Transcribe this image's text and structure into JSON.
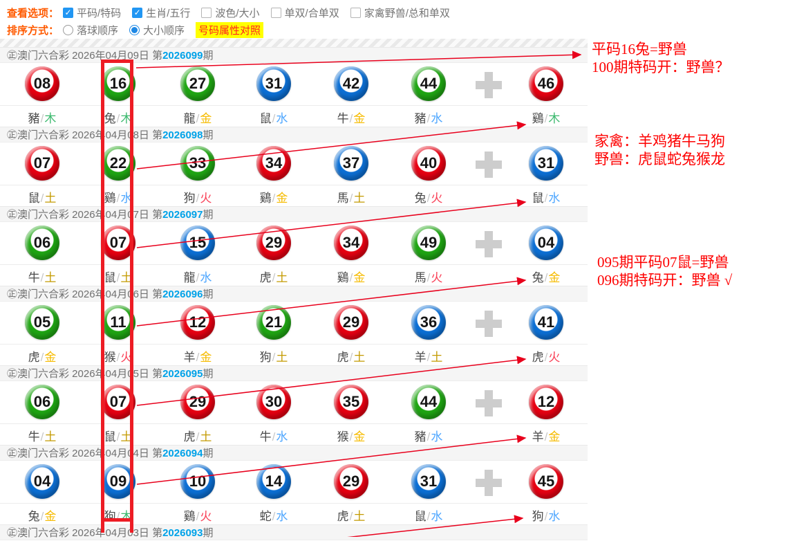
{
  "options_bar": {
    "view_label": "查看选项：",
    "checkboxes": [
      {
        "label": "平码/特码",
        "checked": true
      },
      {
        "label": "生肖/五行",
        "checked": true
      },
      {
        "label": "波色/大小",
        "checked": false
      },
      {
        "label": "单双/合单双",
        "checked": false
      },
      {
        "label": "家禽野兽/总和单双",
        "checked": false
      }
    ],
    "sort_label": "排序方式：",
    "radios": [
      {
        "label": "落球顺序",
        "selected": false
      },
      {
        "label": "大小顺序",
        "selected": true
      }
    ],
    "compare_button": "号码属性对照"
  },
  "draw_title": {
    "prefix": "㊣澳门六合彩",
    "period_prefix": "第",
    "period_suffix": "期"
  },
  "draws": [
    {
      "date": "2026年04月09日",
      "period": "2026099",
      "balls": [
        {
          "num": "08",
          "color": "red",
          "zodiac": "豬",
          "element": "木"
        },
        {
          "num": "16",
          "color": "green",
          "zodiac": "兔",
          "element": "木"
        },
        {
          "num": "27",
          "color": "green",
          "zodiac": "龍",
          "element": "金"
        },
        {
          "num": "31",
          "color": "blue",
          "zodiac": "鼠",
          "element": "水"
        },
        {
          "num": "42",
          "color": "blue",
          "zodiac": "牛",
          "element": "金"
        },
        {
          "num": "44",
          "color": "green",
          "zodiac": "豬",
          "element": "水"
        },
        {
          "num": "46",
          "color": "red",
          "zodiac": "鷄",
          "element": "木",
          "special": true
        }
      ]
    },
    {
      "date": "2026年04月08日",
      "period": "2026098",
      "balls": [
        {
          "num": "07",
          "color": "red",
          "zodiac": "鼠",
          "element": "土"
        },
        {
          "num": "22",
          "color": "green",
          "zodiac": "鷄",
          "element": "水"
        },
        {
          "num": "33",
          "color": "green",
          "zodiac": "狗",
          "element": "火"
        },
        {
          "num": "34",
          "color": "red",
          "zodiac": "鷄",
          "element": "金"
        },
        {
          "num": "37",
          "color": "blue",
          "zodiac": "馬",
          "element": "土"
        },
        {
          "num": "40",
          "color": "red",
          "zodiac": "兔",
          "element": "火"
        },
        {
          "num": "31",
          "color": "blue",
          "zodiac": "鼠",
          "element": "水",
          "special": true
        }
      ]
    },
    {
      "date": "2026年04月07日",
      "period": "2026097",
      "balls": [
        {
          "num": "06",
          "color": "green",
          "zodiac": "牛",
          "element": "土"
        },
        {
          "num": "07",
          "color": "red",
          "zodiac": "鼠",
          "element": "土"
        },
        {
          "num": "15",
          "color": "blue",
          "zodiac": "龍",
          "element": "水"
        },
        {
          "num": "29",
          "color": "red",
          "zodiac": "虎",
          "element": "土"
        },
        {
          "num": "34",
          "color": "red",
          "zodiac": "鷄",
          "element": "金"
        },
        {
          "num": "49",
          "color": "green",
          "zodiac": "馬",
          "element": "火"
        },
        {
          "num": "04",
          "color": "blue",
          "zodiac": "兔",
          "element": "金",
          "special": true
        }
      ]
    },
    {
      "date": "2026年04月06日",
      "period": "2026096",
      "balls": [
        {
          "num": "05",
          "color": "green",
          "zodiac": "虎",
          "element": "金"
        },
        {
          "num": "11",
          "color": "green",
          "zodiac": "猴",
          "element": "火"
        },
        {
          "num": "12",
          "color": "red",
          "zodiac": "羊",
          "element": "金"
        },
        {
          "num": "21",
          "color": "green",
          "zodiac": "狗",
          "element": "土"
        },
        {
          "num": "29",
          "color": "red",
          "zodiac": "虎",
          "element": "土"
        },
        {
          "num": "36",
          "color": "blue",
          "zodiac": "羊",
          "element": "土"
        },
        {
          "num": "41",
          "color": "blue",
          "zodiac": "虎",
          "element": "火",
          "special": true
        }
      ]
    },
    {
      "date": "2026年04月05日",
      "period": "2026095",
      "balls": [
        {
          "num": "06",
          "color": "green",
          "zodiac": "牛",
          "element": "土"
        },
        {
          "num": "07",
          "color": "red",
          "zodiac": "鼠",
          "element": "土"
        },
        {
          "num": "29",
          "color": "red",
          "zodiac": "虎",
          "element": "土"
        },
        {
          "num": "30",
          "color": "red",
          "zodiac": "牛",
          "element": "水"
        },
        {
          "num": "35",
          "color": "red",
          "zodiac": "猴",
          "element": "金"
        },
        {
          "num": "44",
          "color": "green",
          "zodiac": "豬",
          "element": "水"
        },
        {
          "num": "12",
          "color": "red",
          "zodiac": "羊",
          "element": "金",
          "special": true
        }
      ]
    },
    {
      "date": "2026年04月04日",
      "period": "2026094",
      "balls": [
        {
          "num": "04",
          "color": "blue",
          "zodiac": "兔",
          "element": "金"
        },
        {
          "num": "09",
          "color": "blue",
          "zodiac": "狗",
          "element": "木"
        },
        {
          "num": "10",
          "color": "blue",
          "zodiac": "鷄",
          "element": "火"
        },
        {
          "num": "14",
          "color": "blue",
          "zodiac": "蛇",
          "element": "水"
        },
        {
          "num": "29",
          "color": "red",
          "zodiac": "虎",
          "element": "土"
        },
        {
          "num": "31",
          "color": "blue",
          "zodiac": "鼠",
          "element": "水"
        },
        {
          "num": "45",
          "color": "red",
          "zodiac": "狗",
          "element": "水",
          "special": true
        }
      ]
    }
  ],
  "partial_draw": {
    "date": "2026年04月03日",
    "period": "2026093"
  },
  "annotations": [
    {
      "line1": "平码16兔=野兽",
      "line2": "100期特码开：野兽？"
    },
    {
      "line1": "家禽：羊鸡猪牛马狗",
      "line2": "野兽：虎鼠蛇兔猴龙"
    },
    {
      "line1": "095期平码07鼠=野兽",
      "line2": "096期特码开：野兽 √"
    }
  ],
  "colors": {
    "ball": {
      "red": "#e60012",
      "green": "#1fa513",
      "blue": "#0c6fd4"
    },
    "elements": {
      "金": "#f6bb00",
      "木": "#3cb96e",
      "水": "#4da6ff",
      "火": "#f93e55",
      "土": "#c39a00"
    },
    "annotation_red": "#fe0000",
    "period_blue": "#00a2e8",
    "checkbox_blue": "#2196f3",
    "highlight_red": "#ed1c24"
  }
}
